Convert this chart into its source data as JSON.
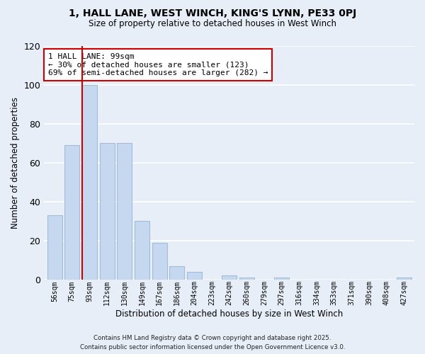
{
  "title": "1, HALL LANE, WEST WINCH, KING'S LYNN, PE33 0PJ",
  "subtitle": "Size of property relative to detached houses in West Winch",
  "xlabel": "Distribution of detached houses by size in West Winch",
  "ylabel": "Number of detached properties",
  "bar_labels": [
    "56sqm",
    "75sqm",
    "93sqm",
    "112sqm",
    "130sqm",
    "149sqm",
    "167sqm",
    "186sqm",
    "204sqm",
    "223sqm",
    "242sqm",
    "260sqm",
    "279sqm",
    "297sqm",
    "316sqm",
    "334sqm",
    "353sqm",
    "371sqm",
    "390sqm",
    "408sqm",
    "427sqm"
  ],
  "bar_values": [
    33,
    69,
    100,
    70,
    70,
    30,
    19,
    7,
    4,
    0,
    2,
    1,
    0,
    1,
    0,
    0,
    0,
    0,
    0,
    0,
    1
  ],
  "bar_color": "#c5d8f0",
  "bar_edge_color": "#a0bcd8",
  "property_line_color": "#cc0000",
  "annotation_title": "1 HALL LANE: 99sqm",
  "annotation_line1": "← 30% of detached houses are smaller (123)",
  "annotation_line2": "69% of semi-detached houses are larger (282) →",
  "annotation_box_color": "#ffffff",
  "annotation_box_edge": "#cc0000",
  "ylim": [
    0,
    120
  ],
  "yticks": [
    0,
    20,
    40,
    60,
    80,
    100,
    120
  ],
  "background_color": "#e8eef8",
  "grid_color": "#ffffff",
  "footer1": "Contains HM Land Registry data © Crown copyright and database right 2025.",
  "footer2": "Contains public sector information licensed under the Open Government Licence v3.0."
}
